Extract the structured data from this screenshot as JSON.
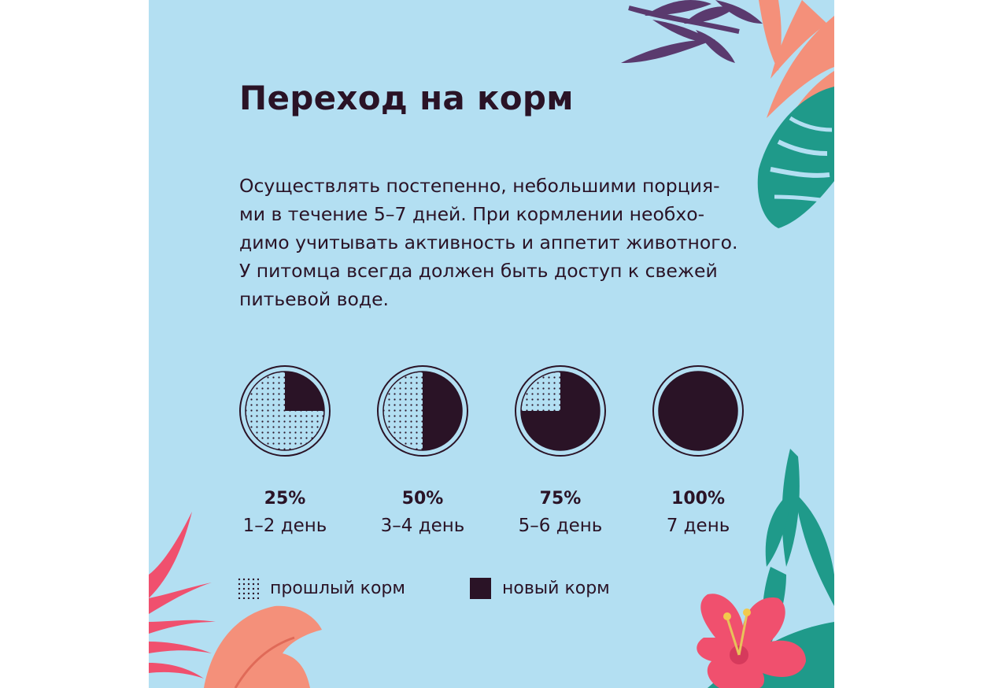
{
  "title": "Переход на корм",
  "description_lines": [
    "Осуществлять постепенно, небольшими порция-",
    "ми в течение 5–7 дней. При кормлении необхо-",
    "димо учитывать активность и аппетит животного.",
    "У питомца всегда должен быть доступ к свежей",
    "питьевой воде."
  ],
  "stages": [
    {
      "percent": "25%",
      "days": "1–2 день",
      "new_share": 0.25
    },
    {
      "percent": "50%",
      "days": "3–4 день",
      "new_share": 0.5
    },
    {
      "percent": "75%",
      "days": "5–6 день",
      "new_share": 0.75
    },
    {
      "percent": "100%",
      "days": "7 день",
      "new_share": 1.0
    }
  ],
  "legend": {
    "old_food": "прошлый корм",
    "new_food": "новый корм"
  },
  "colors": {
    "background": "#b3dff2",
    "text": "#2a1326",
    "new_food": "#2a1326",
    "leaf_purple": "#5a3a6e",
    "leaf_salmon": "#f4907a",
    "leaf_teal": "#1f9a8a",
    "flower_pink": "#f0506e"
  }
}
